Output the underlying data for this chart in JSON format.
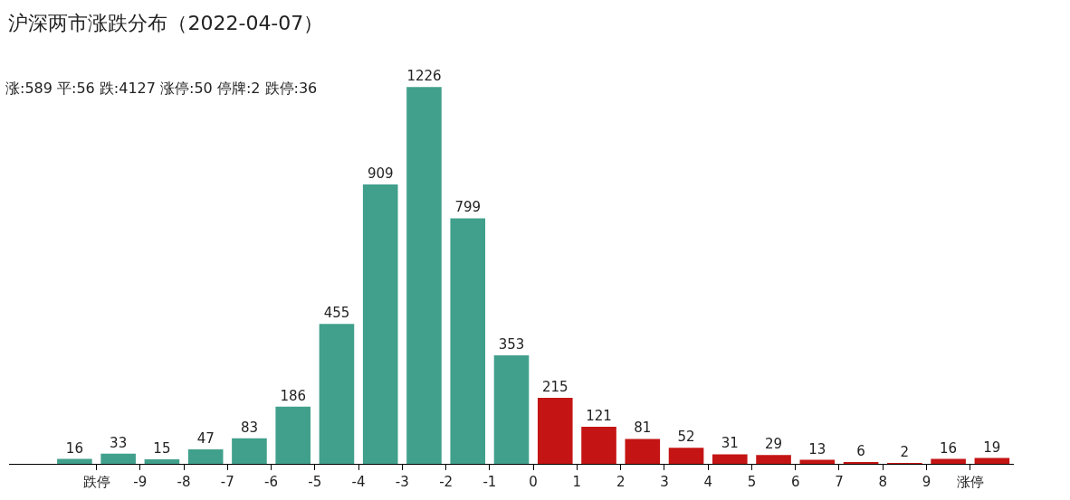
{
  "chart_data": {
    "type": "bar",
    "title": "沪深两市涨跌分布（2022-04-07）",
    "subtitle": "涨:589 平:56 跌:4127 涨停:50 停牌:2 跌停:36",
    "x": [
      -10.5,
      -9.5,
      -8.5,
      -7.5,
      -6.5,
      -5.5,
      -4.5,
      -3.5,
      -2.5,
      -1.5,
      -0.5,
      0.5,
      1.5,
      2.5,
      3.5,
      4.5,
      5.5,
      6.5,
      7.5,
      8.5,
      9.5,
      10.5
    ],
    "values": [
      16,
      33,
      15,
      47,
      83,
      186,
      455,
      909,
      1226,
      799,
      353,
      215,
      121,
      81,
      52,
      31,
      29,
      13,
      6,
      2,
      16,
      19
    ],
    "colors": [
      "#41a08c",
      "#41a08c",
      "#41a08c",
      "#41a08c",
      "#41a08c",
      "#41a08c",
      "#41a08c",
      "#41a08c",
      "#41a08c",
      "#41a08c",
      "#41a08c",
      "#c41414",
      "#c41414",
      "#c41414",
      "#c41414",
      "#c41414",
      "#c41414",
      "#c41414",
      "#c41414",
      "#c41414",
      "#c41414",
      "#c41414"
    ],
    "xlim": [
      -12,
      11
    ],
    "xticks": [
      {
        "value": -10,
        "label": "跌停"
      },
      -9,
      -8,
      -7,
      -6,
      -5,
      -4,
      -3,
      -2,
      -1,
      0,
      1,
      2,
      3,
      4,
      5,
      6,
      7,
      8,
      9,
      {
        "value": 10,
        "label": "涨停"
      }
    ],
    "ylim": [
      0,
      1230
    ],
    "tick_labels": "x",
    "data_labels": true
  }
}
